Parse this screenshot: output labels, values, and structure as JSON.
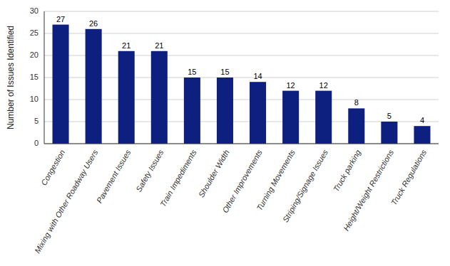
{
  "chart_data": {
    "type": "bar",
    "ylabel": "Number of Issues Identified",
    "categories": [
      "Congestion",
      "Mixing with Other Roadway Users",
      "Pavement Issues",
      "Safety Issues",
      "Train Impediments",
      "Shoulder Width",
      "Other Improvements",
      "Turning Movements",
      "Striping/Signage Issues",
      "Truck parking",
      "Height/Weight Restrictions",
      "Truck Regulations"
    ],
    "values": [
      27,
      26,
      21,
      21,
      15,
      15,
      14,
      12,
      12,
      8,
      5,
      4
    ],
    "color": "#0d2080",
    "ylim": [
      0,
      30
    ],
    "yticks": [
      0,
      5,
      10,
      15,
      20,
      25,
      30
    ],
    "grid": true,
    "data_labels": true
  }
}
